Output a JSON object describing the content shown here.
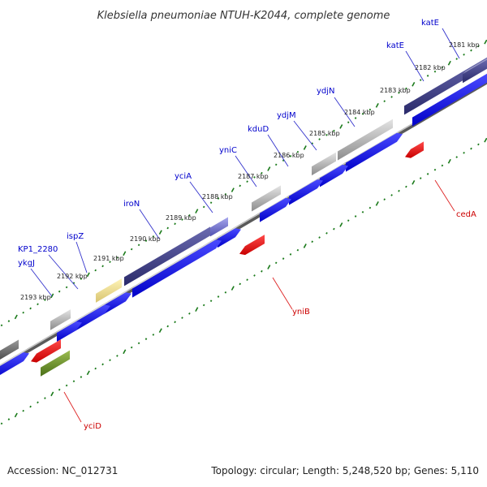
{
  "title": "Klebsiella pneumoniae NTUH-K2044, complete genome",
  "footer": {
    "accession": "Accession: NC_012731",
    "stats": "Topology: circular; Length: 5,248,520 bp; Genes: 5,110"
  },
  "colors": {
    "forward_cds": "#0a0ae6",
    "reverse_cds": "#e60a0a",
    "backbone": "#888888",
    "ticks": "#1a7a1a",
    "forward_label": "#0000cc",
    "reverse_label": "#cc0000",
    "leader_forward": "#3333cc",
    "leader_reverse": "#dd2222"
  },
  "position_labels": [
    "2181 kbp",
    "2182 kbp",
    "2183 kbp",
    "2184 kbp",
    "2185 kbp",
    "2186 kbp",
    "2187 kbp",
    "2188 kbp",
    "2189 kbp",
    "2190 kbp",
    "2191 kbp",
    "2192 kbp",
    "2193 kbp"
  ],
  "genes": [
    {
      "name": "katE",
      "strand": "forward"
    },
    {
      "name": "katE",
      "strand": "forward"
    },
    {
      "name": "ydjN",
      "strand": "forward"
    },
    {
      "name": "ydjM",
      "strand": "forward"
    },
    {
      "name": "kduD",
      "strand": "forward"
    },
    {
      "name": "yniC",
      "strand": "forward"
    },
    {
      "name": "yciA",
      "strand": "forward"
    },
    {
      "name": "iroN",
      "strand": "forward"
    },
    {
      "name": "ispZ",
      "strand": "forward"
    },
    {
      "name": "KP1_2280",
      "strand": "forward"
    },
    {
      "name": "ykgJ",
      "strand": "forward"
    },
    {
      "name": "cedA",
      "strand": "reverse"
    },
    {
      "name": "yniB",
      "strand": "reverse"
    },
    {
      "name": "yciD",
      "strand": "reverse"
    }
  ]
}
